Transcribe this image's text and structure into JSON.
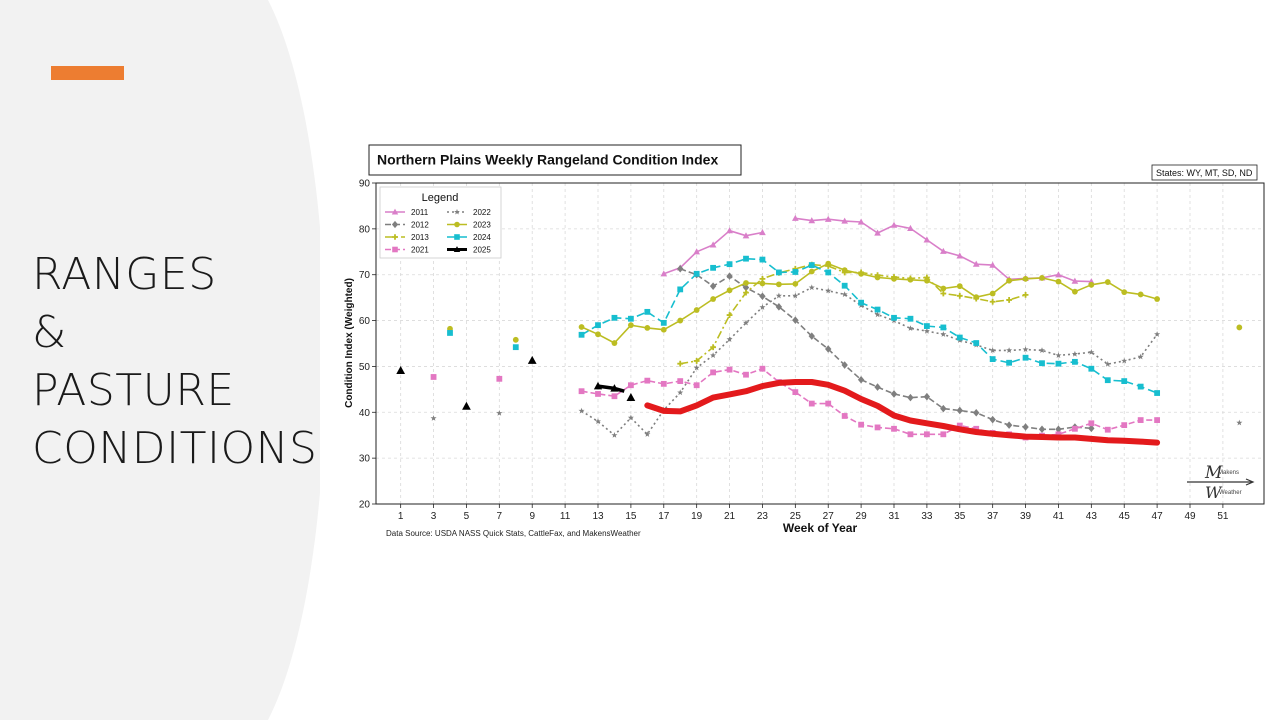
{
  "slide": {
    "title_lines": [
      "RANGES",
      "&",
      "PASTURE",
      "CONDITIONS"
    ],
    "accent_color": "#ED7D31"
  },
  "chart_data": {
    "type": "line",
    "title": "Northern Plains Weekly Rangeland Condition Index",
    "states_note": "States: WY, MT, SD, ND",
    "xlabel": "Week of Year",
    "ylabel": "Condition Index (Weighted)",
    "source": "Data Source: USDA NASS Quick Stats, CattleFax, and MakensWeather",
    "xlim": [
      -0.5,
      53.5
    ],
    "ylim": [
      20,
      90
    ],
    "xticks": [
      1,
      3,
      5,
      7,
      9,
      11,
      13,
      15,
      17,
      19,
      21,
      23,
      25,
      27,
      29,
      31,
      33,
      35,
      37,
      39,
      41,
      43,
      45,
      47,
      49,
      51
    ],
    "yticks": [
      20,
      30,
      40,
      50,
      60,
      70,
      80,
      90
    ],
    "grid": true,
    "legend_title": "Legend",
    "legend_position": "top-left",
    "logo_text": [
      "Makens",
      "Weather"
    ],
    "series": [
      {
        "name": "2011",
        "color": "#D97FC9",
        "dash": "",
        "marker": "triangle",
        "segments": [
          [
            [
              17,
              70.2
            ],
            [
              18,
              71.5
            ],
            [
              19,
              75
            ],
            [
              20,
              76.5
            ],
            [
              21,
              79.6
            ],
            [
              22,
              78.5
            ],
            [
              23,
              79.2
            ]
          ],
          [
            [
              25,
              82.3
            ],
            [
              26,
              81.8
            ],
            [
              27,
              82.1
            ],
            [
              28,
              81.7
            ],
            [
              29,
              81.5
            ],
            [
              30,
              79.1
            ],
            [
              31,
              80.8
            ],
            [
              32,
              80.1
            ],
            [
              33,
              77.6
            ],
            [
              34,
              75.1
            ],
            [
              35,
              74.1
            ],
            [
              36,
              72.3
            ],
            [
              37,
              72.1
            ],
            [
              38,
              69
            ],
            [
              39,
              69.2
            ],
            [
              40,
              69.3
            ],
            [
              41,
              70
            ],
            [
              42,
              68.6
            ],
            [
              43,
              68.5
            ]
          ]
        ]
      },
      {
        "name": "2012",
        "color": "#7F7F7F",
        "dash": "6,3",
        "marker": "diamond",
        "segments": [
          [
            [
              18,
              71.3
            ],
            [
              19,
              70
            ],
            [
              20,
              67.5
            ],
            [
              21,
              69.7
            ],
            [
              22,
              67.2
            ],
            [
              23,
              65.3
            ],
            [
              24,
              63
            ],
            [
              25,
              60.1
            ],
            [
              26,
              56.6
            ],
            [
              27,
              53.8
            ],
            [
              28,
              50.3
            ],
            [
              29,
              47.1
            ],
            [
              30,
              45.5
            ],
            [
              31,
              44
            ],
            [
              32,
              43.2
            ],
            [
              33,
              43.4
            ],
            [
              34,
              40.8
            ],
            [
              35,
              40.4
            ],
            [
              36,
              39.9
            ],
            [
              37,
              38.4
            ],
            [
              38,
              37.2
            ],
            [
              39,
              36.8
            ],
            [
              40,
              36.3
            ],
            [
              41,
              36.3
            ],
            [
              42,
              36.8
            ],
            [
              43,
              36.5
            ]
          ]
        ]
      },
      {
        "name": "2013",
        "color": "#BCBD22",
        "dash": "8,3,2,3",
        "marker": "cross",
        "segments": [
          [
            [
              18,
              50.6
            ],
            [
              19,
              51.2
            ],
            [
              20,
              54.2
            ],
            [
              21,
              61.2
            ],
            [
              22,
              66.1
            ],
            [
              23,
              69.1
            ],
            [
              24,
              70.4
            ],
            [
              25,
              71.3
            ],
            [
              26,
              72.2
            ],
            [
              27,
              71.9
            ],
            [
              28,
              70.5
            ],
            [
              29,
              70.5
            ],
            [
              30,
              69.9
            ],
            [
              31,
              69.5
            ],
            [
              32,
              69.2
            ],
            [
              33,
              69.4
            ],
            [
              34,
              65.9
            ],
            [
              35,
              65.4
            ],
            [
              36,
              64.8
            ],
            [
              37,
              64.1
            ],
            [
              38,
              64.5
            ],
            [
              39,
              65.6
            ]
          ]
        ]
      },
      {
        "name": "2021",
        "color": "#E377C2",
        "dash": "6,3",
        "marker": "square",
        "segments": [
          [
            [
              12,
              44.6
            ],
            [
              13,
              44
            ],
            [
              14,
              43.5
            ],
            [
              15,
              45.9
            ],
            [
              16,
              46.9
            ],
            [
              17,
              46.2
            ],
            [
              18,
              46.8
            ],
            [
              19,
              45.9
            ],
            [
              20,
              48.7
            ],
            [
              21,
              49.3
            ],
            [
              22,
              48.2
            ],
            [
              23,
              49.5
            ],
            [
              24,
              46.6
            ],
            [
              25,
              44.4
            ],
            [
              26,
              41.9
            ],
            [
              27,
              41.9
            ],
            [
              28,
              39.2
            ],
            [
              29,
              37.3
            ],
            [
              30,
              36.7
            ],
            [
              31,
              36.4
            ],
            [
              32,
              35.2
            ],
            [
              33,
              35.2
            ],
            [
              34,
              35.2
            ],
            [
              35,
              37.1
            ],
            [
              36,
              36.4
            ],
            [
              37,
              35.5
            ],
            [
              38,
              35.2
            ],
            [
              39,
              34.5
            ],
            [
              40,
              34.9
            ],
            [
              41,
              35.2
            ],
            [
              42,
              36.4
            ],
            [
              43,
              37.6
            ],
            [
              44,
              36.2
            ],
            [
              45,
              37.2
            ],
            [
              46,
              38.3
            ],
            [
              47,
              38.3
            ]
          ]
        ]
      },
      {
        "name": "2022",
        "color": "#7F7F7F",
        "dash": "2,3",
        "marker": "star",
        "segments": [
          [
            [
              12,
              40.3
            ],
            [
              13,
              38
            ],
            [
              14,
              35
            ],
            [
              15,
              38.8
            ],
            [
              16,
              35.2
            ],
            [
              17,
              40.5
            ],
            [
              18,
              44.3
            ],
            [
              19,
              49.7
            ],
            [
              20,
              52.4
            ],
            [
              21,
              55.9
            ],
            [
              22,
              59.5
            ],
            [
              23,
              62.9
            ],
            [
              24,
              65.4
            ],
            [
              25,
              65.4
            ],
            [
              26,
              67.2
            ],
            [
              27,
              66.5
            ],
            [
              28,
              65.7
            ],
            [
              29,
              63.3
            ],
            [
              30,
              61.3
            ],
            [
              31,
              60
            ],
            [
              32,
              58.3
            ],
            [
              33,
              57.7
            ],
            [
              34,
              57
            ],
            [
              35,
              55.7
            ],
            [
              36,
              54.7
            ],
            [
              37,
              53.5
            ],
            [
              38,
              53.5
            ],
            [
              39,
              53.7
            ],
            [
              40,
              53.5
            ],
            [
              41,
              52.4
            ],
            [
              42,
              52.7
            ],
            [
              43,
              53.1
            ],
            [
              44,
              50.5
            ],
            [
              45,
              51.2
            ],
            [
              46,
              52.1
            ],
            [
              47,
              57
            ]
          ]
        ]
      },
      {
        "name": "2023",
        "color": "#BCBD22",
        "dash": "",
        "marker": "circle",
        "segments": [
          [
            [
              12,
              58.6
            ],
            [
              13,
              57
            ],
            [
              14,
              55.1
            ],
            [
              15,
              59
            ],
            [
              16,
              58.4
            ],
            [
              17,
              58
            ],
            [
              18,
              60
            ],
            [
              19,
              62.3
            ],
            [
              20,
              64.7
            ],
            [
              21,
              66.6
            ],
            [
              22,
              68.2
            ],
            [
              23,
              68.1
            ],
            [
              24,
              67.9
            ],
            [
              25,
              68
            ],
            [
              26,
              70.7
            ],
            [
              27,
              72.4
            ],
            [
              28,
              71
            ],
            [
              29,
              70.2
            ],
            [
              30,
              69.4
            ],
            [
              31,
              69.1
            ],
            [
              32,
              68.9
            ],
            [
              33,
              68.7
            ],
            [
              34,
              67
            ],
            [
              35,
              67.5
            ],
            [
              36,
              65.1
            ],
            [
              37,
              65.9
            ],
            [
              38,
              68.7
            ],
            [
              39,
              69.1
            ],
            [
              40,
              69.3
            ],
            [
              41,
              68.5
            ],
            [
              42,
              66.3
            ],
            [
              43,
              67.8
            ],
            [
              44,
              68.4
            ],
            [
              45,
              66.2
            ],
            [
              46,
              65.7
            ],
            [
              47,
              64.7
            ]
          ]
        ]
      },
      {
        "name": "2024",
        "color": "#17BECF",
        "dash": "8,4",
        "marker": "square",
        "segments": [
          [
            [
              12,
              56.9
            ],
            [
              13,
              59
            ],
            [
              14,
              60.6
            ],
            [
              15,
              60.4
            ],
            [
              16,
              61.9
            ],
            [
              17,
              59.5
            ],
            [
              18,
              66.8
            ],
            [
              19,
              70.2
            ],
            [
              20,
              71.5
            ],
            [
              21,
              72.3
            ],
            [
              22,
              73.5
            ],
            [
              23,
              73.3
            ],
            [
              24,
              70.5
            ],
            [
              25,
              70.6
            ],
            [
              26,
              72.1
            ],
            [
              27,
              70.5
            ],
            [
              28,
              67.6
            ],
            [
              29,
              63.9
            ],
            [
              30,
              62.4
            ],
            [
              31,
              60.6
            ],
            [
              32,
              60.4
            ],
            [
              33,
              58.8
            ],
            [
              34,
              58.5
            ],
            [
              35,
              56.3
            ],
            [
              36,
              55.1
            ],
            [
              37,
              51.6
            ],
            [
              38,
              50.8
            ],
            [
              39,
              51.9
            ],
            [
              40,
              50.7
            ],
            [
              41,
              50.6
            ],
            [
              42,
              51
            ],
            [
              43,
              49.5
            ],
            [
              44,
              47
            ],
            [
              45,
              46.8
            ],
            [
              46,
              45.6
            ],
            [
              47,
              44.2
            ]
          ]
        ]
      },
      {
        "name": "2025",
        "color": "#000000",
        "dash": "",
        "marker": "triangle",
        "width": 3.5,
        "segments": [
          [
            [
              13,
              45.7
            ],
            [
              14,
              45.2
            ],
            [
              14.6,
              44.6
            ]
          ]
        ]
      }
    ],
    "isolated_points": [
      {
        "series": "2025",
        "points": [
          [
            1,
            49.1
          ],
          [
            5,
            41.3
          ],
          [
            9,
            51.3
          ],
          [
            15,
            43.2
          ]
        ]
      },
      {
        "series": "2023",
        "points": [
          [
            4,
            58.2
          ],
          [
            8,
            55.8
          ],
          [
            52,
            58.5
          ]
        ]
      },
      {
        "series": "2024",
        "points": [
          [
            4,
            57.3
          ],
          [
            8,
            54.2
          ]
        ]
      },
      {
        "series": "2021",
        "points": [
          [
            3,
            47.7
          ],
          [
            7,
            47.3
          ]
        ]
      },
      {
        "series": "2022",
        "points": [
          [
            3,
            38.7
          ],
          [
            7,
            39.8
          ],
          [
            52,
            37.7
          ]
        ]
      }
    ],
    "forecast": {
      "color": "#E31A1C",
      "points": [
        [
          16,
          41.5
        ],
        [
          17,
          40.3
        ],
        [
          18,
          40.2
        ],
        [
          19,
          41.5
        ],
        [
          20,
          43.2
        ],
        [
          21,
          43.9
        ],
        [
          22,
          44.6
        ],
        [
          23,
          45.7
        ],
        [
          24,
          46.4
        ],
        [
          25,
          46.6
        ],
        [
          26,
          46.6
        ],
        [
          27,
          46
        ],
        [
          28,
          44.7
        ],
        [
          29,
          42.9
        ],
        [
          30,
          41.4
        ],
        [
          31,
          39.3
        ],
        [
          32,
          38.2
        ],
        [
          33,
          37.6
        ],
        [
          34,
          37
        ],
        [
          35,
          36.3
        ],
        [
          36,
          35.7
        ],
        [
          37,
          35.3
        ],
        [
          38,
          35
        ],
        [
          39,
          34.7
        ],
        [
          40,
          34.6
        ],
        [
          41,
          34.5
        ],
        [
          42,
          34.5
        ],
        [
          43,
          34.2
        ],
        [
          44,
          33.9
        ],
        [
          45,
          33.8
        ],
        [
          46,
          33.6
        ],
        [
          47,
          33.4
        ]
      ]
    }
  }
}
